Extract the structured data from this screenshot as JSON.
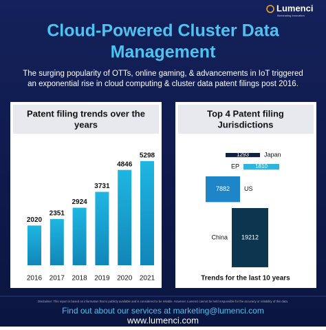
{
  "brand": {
    "name": "Lumenci",
    "tagline": "Illuminating Innovation"
  },
  "header": {
    "title_lines": [
      "Cloud-Powered Cluster Data",
      "Management"
    ],
    "subtitle_lines": [
      "The surging popularity of OTTs, online gaming, & advancements in IoT triggered",
      "an exponential rise in cloud computing & cluster data patent filings post 2016."
    ]
  },
  "chart_data": [
    {
      "type": "bar",
      "title_lines": [
        "Patent filing trends over the",
        "years"
      ],
      "categories": [
        "2016",
        "2017",
        "2018",
        "2019",
        "2020",
        "2021"
      ],
      "values": [
        2020,
        2351,
        2924,
        3731,
        4846,
        5298
      ],
      "ylim": [
        0,
        5500
      ],
      "color": "#1aa9d6"
    },
    {
      "type": "area-rect",
      "title_lines": [
        "Top 4 Patent filing",
        "Jurisdictions"
      ],
      "categories": [
        "Japan",
        "EP",
        "US",
        "China"
      ],
      "values": [
        1293,
        1810,
        7882,
        19212
      ],
      "colors": [
        "#0f2244",
        "#2cb5e0",
        "#1e86c8",
        "#0c3550"
      ],
      "caption": "Trends for the last 10 years"
    }
  ],
  "footer": {
    "disclaimer": "Disclaimer: This report is based on information that is publicly available and is considered to be reliable. However, Lumenci cannot be held responsible for the accuracy or reliability of this data.",
    "contact": "Find out about our services at marketing@lumenci.com",
    "website": "www.lumenci.com"
  }
}
